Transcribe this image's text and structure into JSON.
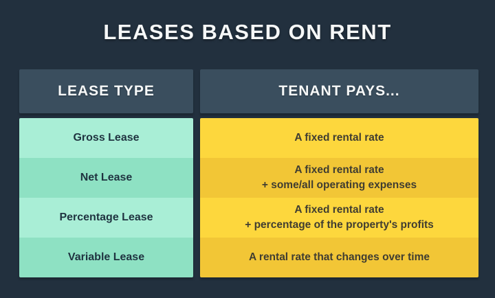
{
  "title": "LEASES BASED ON RENT",
  "table": {
    "headers": [
      {
        "label": "LEASE TYPE"
      },
      {
        "label": "TENANT PAYS..."
      }
    ],
    "rows": [
      {
        "lease_type": "Gross Lease",
        "tenant_pays_line1": "A fixed rental rate",
        "tenant_pays_line2": ""
      },
      {
        "lease_type": "Net Lease",
        "tenant_pays_line1": "A fixed rental rate",
        "tenant_pays_line2": "+ some/all operating expenses"
      },
      {
        "lease_type": "Percentage Lease",
        "tenant_pays_line1": "A fixed rental rate",
        "tenant_pays_line2": "+ percentage of the property's profits"
      },
      {
        "lease_type": "Variable Lease",
        "tenant_pays_line1": "A rental rate that changes over time",
        "tenant_pays_line2": ""
      }
    ]
  },
  "colors": {
    "bg": "#22303e",
    "header_bg": "#3a4e5e",
    "title_text": "#f6f8f8",
    "green_light": "#a9eed6",
    "green_dark": "#8ee1c3",
    "green_text": "#1f3340",
    "yellow_light": "#fdd73d",
    "yellow_dark": "#f2c636",
    "yellow_text": "#403d31"
  },
  "chart_data": {
    "type": "table",
    "title": "LEASES BASED ON RENT",
    "columns": [
      "LEASE TYPE",
      "TENANT PAYS..."
    ],
    "rows": [
      [
        "Gross Lease",
        "A fixed rental rate"
      ],
      [
        "Net Lease",
        "A fixed rental rate + some/all operating expenses"
      ],
      [
        "Percentage Lease",
        "A fixed rental rate + percentage of the property's profits"
      ],
      [
        "Variable Lease",
        "A rental rate that changes over time"
      ]
    ],
    "layout_hints": {
      "legend": "none",
      "grid": "off",
      "row_shading": "alternating (rows 1,3 lighter; rows 2,4 darker)",
      "left_column_color": "mint green",
      "right_column_color": "golden yellow"
    }
  }
}
